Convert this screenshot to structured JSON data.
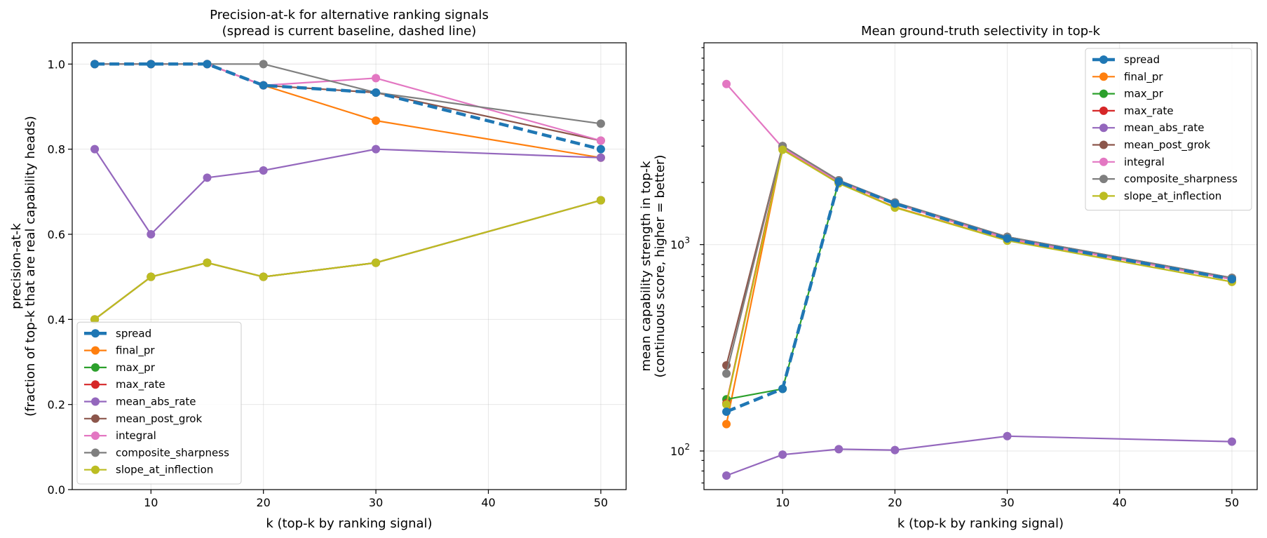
{
  "colors": {
    "spread": "#1f77b4",
    "final_pr": "#ff7f0e",
    "max_pr": "#2ca02c",
    "max_rate": "#d62728",
    "mean_abs_rate": "#9467bd",
    "mean_post_grok": "#8c564b",
    "integral": "#e377c2",
    "composite_sharpness": "#7f7f7f",
    "slope_at_inflection": "#bcbd22"
  },
  "chart_data": [
    {
      "type": "line",
      "title": "Precision-at-k for alternative ranking signals",
      "subtitle": "(spread is current baseline, dashed line)",
      "xlabel": "k (top-k by ranking signal)",
      "ylabel": "precision-at-k",
      "ylabel2": "(fraction of top-k that are real capability heads)",
      "x": [
        5,
        10,
        15,
        20,
        30,
        50
      ],
      "xlim": [
        3,
        52.25
      ],
      "ylim": [
        0,
        1.05
      ],
      "yscale": "linear",
      "xticks": [
        "10",
        "20",
        "30",
        "40",
        "50"
      ],
      "yticks": [
        "0.0",
        "0.2",
        "0.4",
        "0.6",
        "0.8",
        "1.0"
      ],
      "grid": true,
      "legend_position": "lower-left",
      "series": [
        {
          "name": "spread",
          "dashed": true,
          "values": [
            1.0,
            1.0,
            1.0,
            0.95,
            0.933,
            0.8
          ]
        },
        {
          "name": "final_pr",
          "values": [
            1.0,
            1.0,
            1.0,
            0.95,
            0.867,
            0.78
          ]
        },
        {
          "name": "max_pr",
          "values": [
            0.4,
            0.5,
            0.533,
            0.5,
            0.533,
            0.68
          ]
        },
        {
          "name": "max_rate",
          "values": [
            0.4,
            0.5,
            0.533,
            0.5,
            0.533,
            0.68
          ]
        },
        {
          "name": "mean_abs_rate",
          "values": [
            0.8,
            0.6,
            0.733,
            0.75,
            0.8,
            0.78
          ]
        },
        {
          "name": "mean_post_grok",
          "values": [
            1.0,
            1.0,
            1.0,
            0.95,
            0.933,
            0.82
          ]
        },
        {
          "name": "integral",
          "values": [
            1.0,
            1.0,
            1.0,
            0.95,
            0.967,
            0.82
          ]
        },
        {
          "name": "composite_sharpness",
          "values": [
            1.0,
            1.0,
            1.0,
            1.0,
            0.933,
            0.86
          ]
        },
        {
          "name": "slope_at_inflection",
          "values": [
            0.4,
            0.5,
            0.533,
            0.5,
            0.533,
            0.68
          ]
        }
      ]
    },
    {
      "type": "line",
      "title": "Mean ground-truth selectivity in top-k",
      "subtitle": "",
      "xlabel": "k (top-k by ranking signal)",
      "ylabel": "mean capability strength in top-k",
      "ylabel2": "(continuous score, higher = better)",
      "x": [
        5,
        10,
        15,
        20,
        30,
        50
      ],
      "xlim": [
        3,
        52.25
      ],
      "ylim": [
        65,
        9500
      ],
      "yscale": "log",
      "xticks": [
        "10",
        "20",
        "30",
        "40",
        "50"
      ],
      "yticks": [
        {
          "value": 100,
          "base": "10",
          "exp": "2"
        },
        {
          "value": 1000,
          "base": "10",
          "exp": "3"
        }
      ],
      "grid": true,
      "legend_position": "upper-right",
      "series": [
        {
          "name": "spread",
          "dashed": true,
          "values": [
            155,
            200,
            2020,
            1580,
            1070,
            680
          ]
        },
        {
          "name": "final_pr",
          "values": [
            135,
            2900,
            1990,
            1520,
            1050,
            660
          ]
        },
        {
          "name": "max_pr",
          "values": [
            178,
            200,
            2020,
            1580,
            1070,
            680
          ]
        },
        {
          "name": "max_rate",
          "values": [
            170,
            2950,
            2020,
            1580,
            1070,
            680
          ]
        },
        {
          "name": "mean_abs_rate",
          "values": [
            76,
            96,
            102,
            101,
            118,
            111
          ]
        },
        {
          "name": "mean_post_grok",
          "values": [
            260,
            3000,
            2050,
            1600,
            1090,
            690
          ]
        },
        {
          "name": "integral",
          "values": [
            6000,
            2950,
            2020,
            1580,
            1070,
            680
          ]
        },
        {
          "name": "composite_sharpness",
          "values": [
            237,
            3000,
            2050,
            1600,
            1090,
            690
          ]
        },
        {
          "name": "slope_at_inflection",
          "values": [
            168,
            2880,
            1980,
            1510,
            1045,
            660
          ]
        }
      ]
    }
  ]
}
